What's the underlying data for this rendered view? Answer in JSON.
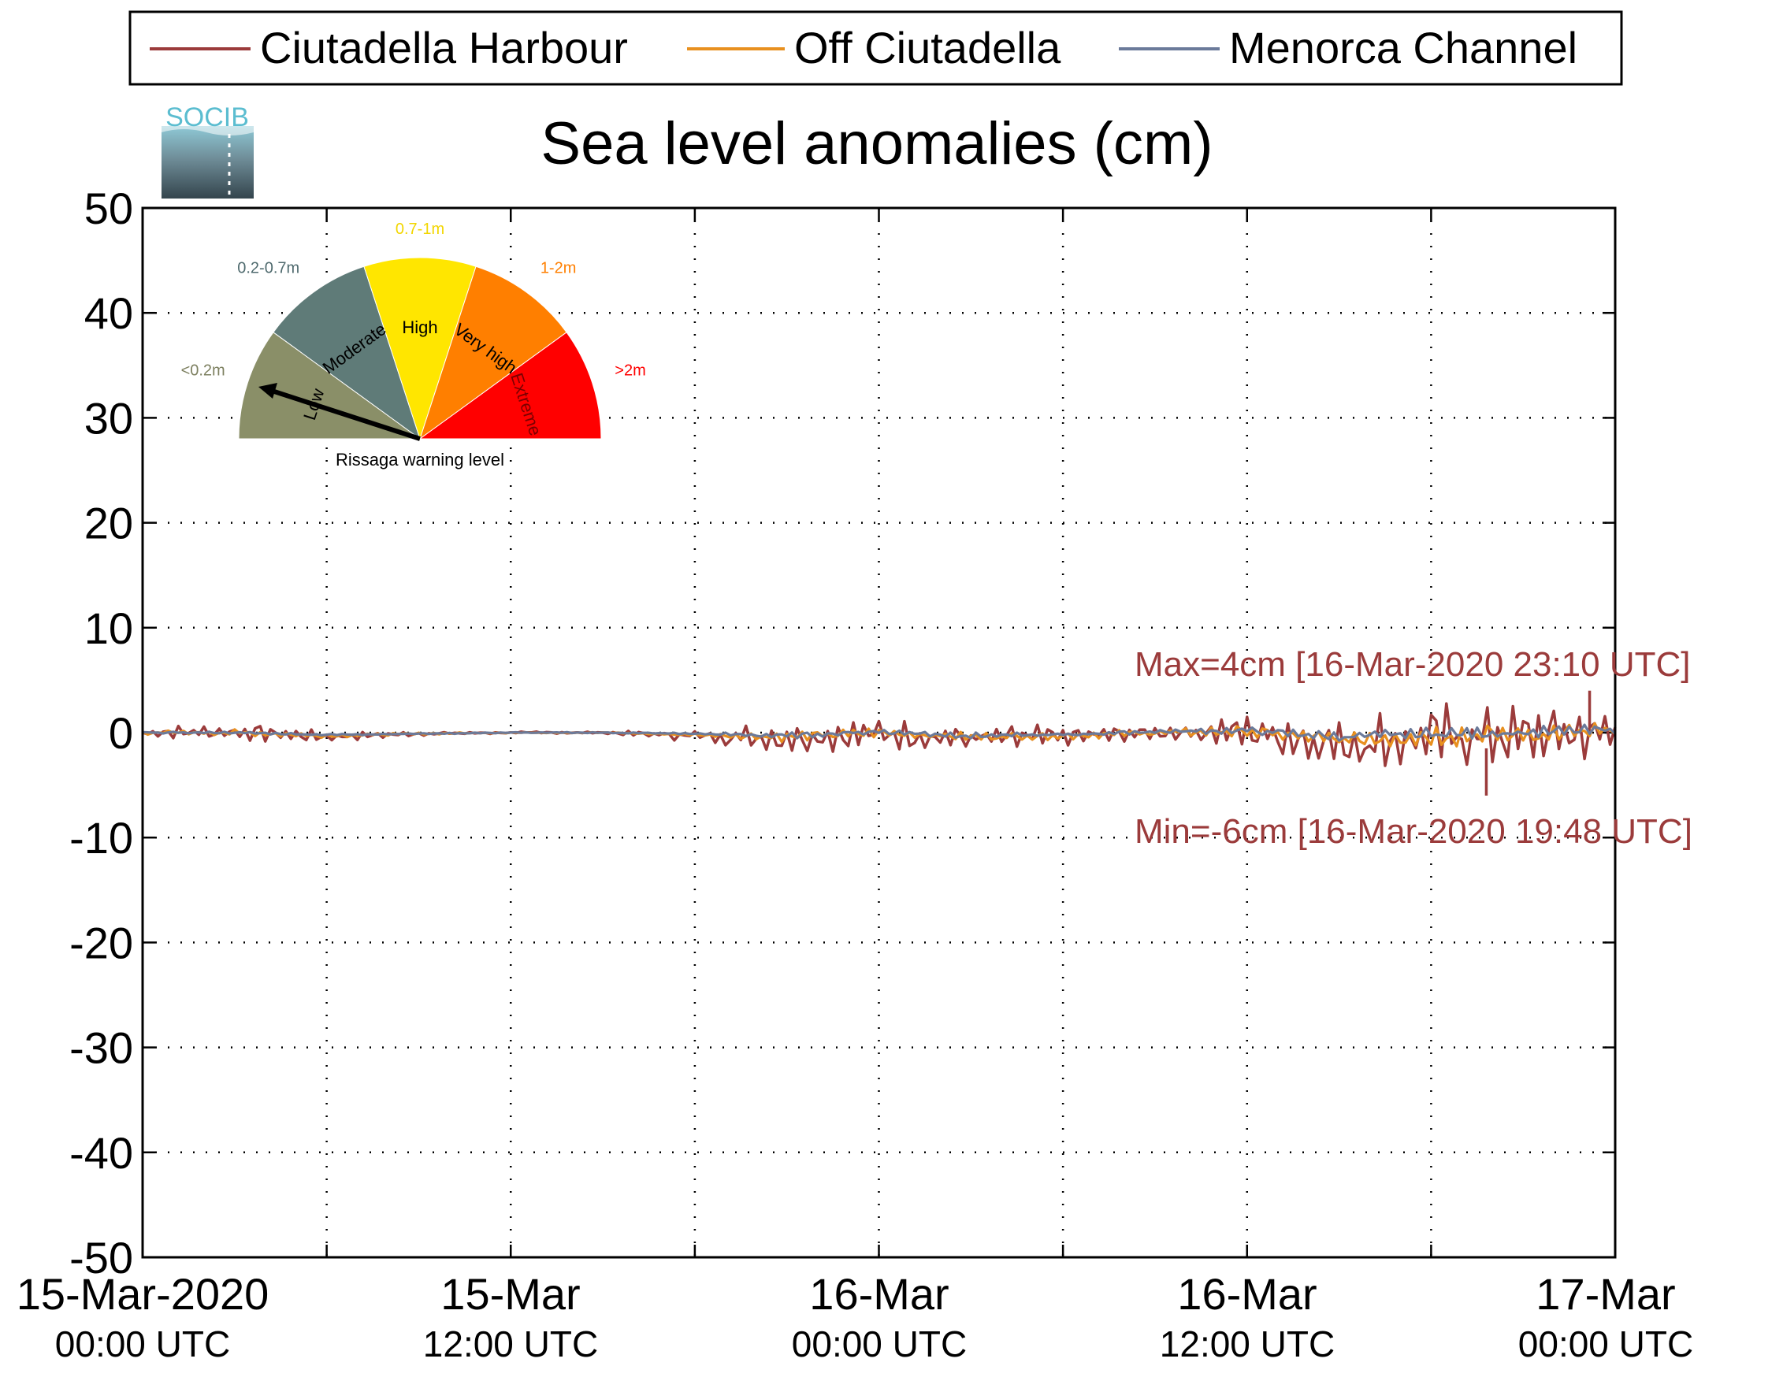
{
  "chart_data": {
    "type": "line",
    "title": "Sea level anomalies (cm)",
    "xlabel": "",
    "ylabel": "",
    "ylim": [
      -50,
      50
    ],
    "xlim": [
      "2020-03-15 00:00 UTC",
      "2020-03-17 00:00 UTC"
    ],
    "yticks": [
      "50",
      "40",
      "30",
      "20",
      "10",
      "0",
      "-10",
      "-20",
      "-30",
      "-40",
      "-50"
    ],
    "xticks": [
      {
        "line1": "15-Mar-2020",
        "line2": "00:00 UTC"
      },
      {
        "line1": "15-Mar",
        "line2": "12:00 UTC"
      },
      {
        "line1": "16-Mar",
        "line2": "00:00 UTC"
      },
      {
        "line1": "16-Mar",
        "line2": "12:00 UTC"
      },
      {
        "line1": "17-Mar",
        "line2": "00:00 UTC"
      }
    ],
    "grid": true,
    "legend": "top",
    "hours": [
      0,
      3,
      6,
      9,
      12,
      15,
      18,
      21,
      24,
      27,
      30,
      33,
      36,
      39,
      42,
      45,
      48
    ],
    "series": [
      {
        "name": "Ciutadella Harbour",
        "color": "#9b3b3b",
        "envelope": [
          0.4,
          1.0,
          0.5,
          0.2,
          0.1,
          0.1,
          0.6,
          1.7,
          1.5,
          1.3,
          1.2,
          0.6,
          1.8,
          2.7,
          3.3,
          2.9,
          2.5
        ],
        "values": [
          0.0,
          0.1,
          -0.4,
          -0.1,
          0.0,
          0.0,
          -0.3,
          -0.5,
          -0.1,
          -0.6,
          -0.4,
          0.0,
          0.1,
          -1.1,
          -0.5,
          -0.3,
          0.0
        ]
      },
      {
        "name": "Off Ciutadella",
        "color": "#e8901f",
        "envelope": [
          0.2,
          0.3,
          0.2,
          0.1,
          0.05,
          0.05,
          0.2,
          0.5,
          0.5,
          0.4,
          0.4,
          0.3,
          0.6,
          0.9,
          1.1,
          1.2,
          1.0
        ],
        "values": [
          0.0,
          0.0,
          -0.3,
          -0.1,
          0.0,
          0.0,
          -0.2,
          -0.4,
          0.0,
          -0.4,
          -0.3,
          0.0,
          0.1,
          -0.7,
          -0.3,
          -0.2,
          0.1
        ]
      },
      {
        "name": "Menorca Channel",
        "color": "#6b7a9a",
        "envelope": [
          0.1,
          0.1,
          0.1,
          0.05,
          0.05,
          0.05,
          0.1,
          0.3,
          0.3,
          0.3,
          0.2,
          0.2,
          0.4,
          0.5,
          0.6,
          0.6,
          0.5
        ],
        "values": [
          0.0,
          0.0,
          -0.2,
          -0.1,
          0.0,
          0.0,
          -0.1,
          -0.3,
          0.1,
          -0.3,
          -0.2,
          0.1,
          0.2,
          -0.4,
          -0.1,
          0.0,
          0.3
        ]
      }
    ],
    "extremes": [
      {
        "kind": "max",
        "value": 4,
        "time": "16-Mar-2020 23:10 UTC"
      },
      {
        "kind": "min",
        "value": -6,
        "time": "16-Mar-2020 19:48 UTC"
      }
    ],
    "annotations": {
      "max": "Max=4cm [16-Mar-2020 23:10 UTC]",
      "min": "Min=-6cm [16-Mar-2020 19:48 UTC]"
    }
  },
  "logo": {
    "text": "SOCIB"
  },
  "gauge": {
    "caption": "Rissaga warning level",
    "needle_level": "Low",
    "segments": [
      {
        "level": "Low",
        "range": "<0.2m",
        "color": "#8a8f68",
        "range_color": "#7d8060",
        "label_color": "#000000"
      },
      {
        "level": "Moderate",
        "range": "0.2-0.7m",
        "color": "#5f7b78",
        "range_color": "#4f6a6e",
        "label_color": "#000000"
      },
      {
        "level": "High",
        "range": "0.7-1m",
        "color": "#ffe600",
        "range_color": "#f2d600",
        "label_color": "#000000"
      },
      {
        "level": "Very high",
        "range": "1-2m",
        "color": "#ff7f00",
        "range_color": "#ff7f00",
        "label_color": "#000000"
      },
      {
        "level": "Extreme",
        "range": ">2m",
        "color": "#ff0000",
        "range_color": "#ff0000",
        "label_color": "#7a0000"
      }
    ]
  }
}
